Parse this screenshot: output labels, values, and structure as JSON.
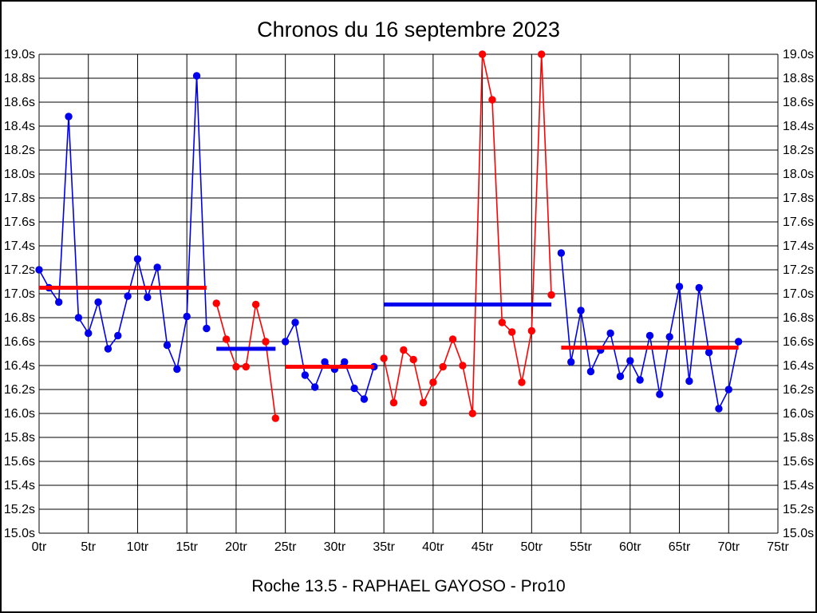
{
  "title": "Chronos du 16 septembre 2023",
  "caption": "Roche 13.5 - RAPHAEL GAYOSO - Pro10",
  "colors": {
    "blue": "#0000ee",
    "red": "#ff0000",
    "grid": "#000000",
    "background": "#ffffff",
    "text": "#000000"
  },
  "chart_data": {
    "type": "line",
    "title": "Chronos du 16 septembre 2023",
    "x_unit": "tr",
    "y_unit": "s",
    "xlim": [
      0,
      75
    ],
    "ylim": [
      15.0,
      19.0
    ],
    "x_tick_step": 5,
    "y_tick_step": 0.2,
    "grid": true,
    "legend": "none",
    "x_ticks": [
      "0tr",
      "5tr",
      "10tr",
      "15tr",
      "20tr",
      "25tr",
      "30tr",
      "35tr",
      "40tr",
      "45tr",
      "50tr",
      "55tr",
      "60tr",
      "65tr",
      "70tr",
      "75tr"
    ],
    "y_ticks": [
      "19.0s",
      "18.8s",
      "18.6s",
      "18.4s",
      "18.2s",
      "18.0s",
      "17.8s",
      "17.6s",
      "17.4s",
      "17.2s",
      "17.0s",
      "16.8s",
      "16.6s",
      "16.4s",
      "16.2s",
      "16.0s",
      "15.8s",
      "15.6s",
      "15.4s",
      "15.2s",
      "15.0s"
    ],
    "stints": [
      {
        "name": "stint-1",
        "color": "#0000ee",
        "start_lap": 0,
        "lap_times": [
          17.2,
          17.05,
          16.93,
          18.48,
          16.8,
          16.67,
          16.93,
          16.54,
          16.65,
          16.98,
          17.29,
          16.97,
          17.22,
          16.57,
          16.37,
          16.81,
          18.82,
          16.71
        ],
        "average": {
          "value": 17.05,
          "color": "#ff0000"
        }
      },
      {
        "name": "stint-2",
        "color": "#ff0000",
        "start_lap": 18,
        "lap_times": [
          16.92,
          16.62,
          16.39,
          16.39,
          16.91,
          16.6,
          15.96
        ],
        "average": {
          "value": 16.54,
          "color": "#0000ee"
        }
      },
      {
        "name": "stint-3",
        "color": "#0000ee",
        "start_lap": 25,
        "lap_times": [
          16.6,
          16.76,
          16.32,
          16.22,
          16.43,
          16.37,
          16.43,
          16.21,
          16.12,
          16.39
        ],
        "average": {
          "value": 16.39,
          "color": "#ff0000"
        }
      },
      {
        "name": "stint-4",
        "color": "#ff0000",
        "start_lap": 35,
        "lap_times": [
          16.46,
          16.09,
          16.53,
          16.45,
          16.09,
          16.26,
          16.39,
          16.62,
          16.4,
          16.0,
          19.0,
          18.62,
          16.76,
          16.68,
          16.26,
          16.69,
          19.0,
          16.99
        ],
        "average": {
          "value": 16.91,
          "color": "#0000ee"
        }
      },
      {
        "name": "stint-5",
        "color": "#0000ee",
        "start_lap": 53,
        "lap_times": [
          17.34,
          16.43,
          16.86,
          16.35,
          16.53,
          16.67,
          16.31,
          16.44,
          16.28,
          16.65,
          16.16,
          16.64,
          17.06,
          16.27,
          17.05,
          16.51,
          16.04,
          16.2,
          16.6
        ],
        "average": {
          "value": 16.55,
          "color": "#ff0000"
        }
      }
    ]
  }
}
